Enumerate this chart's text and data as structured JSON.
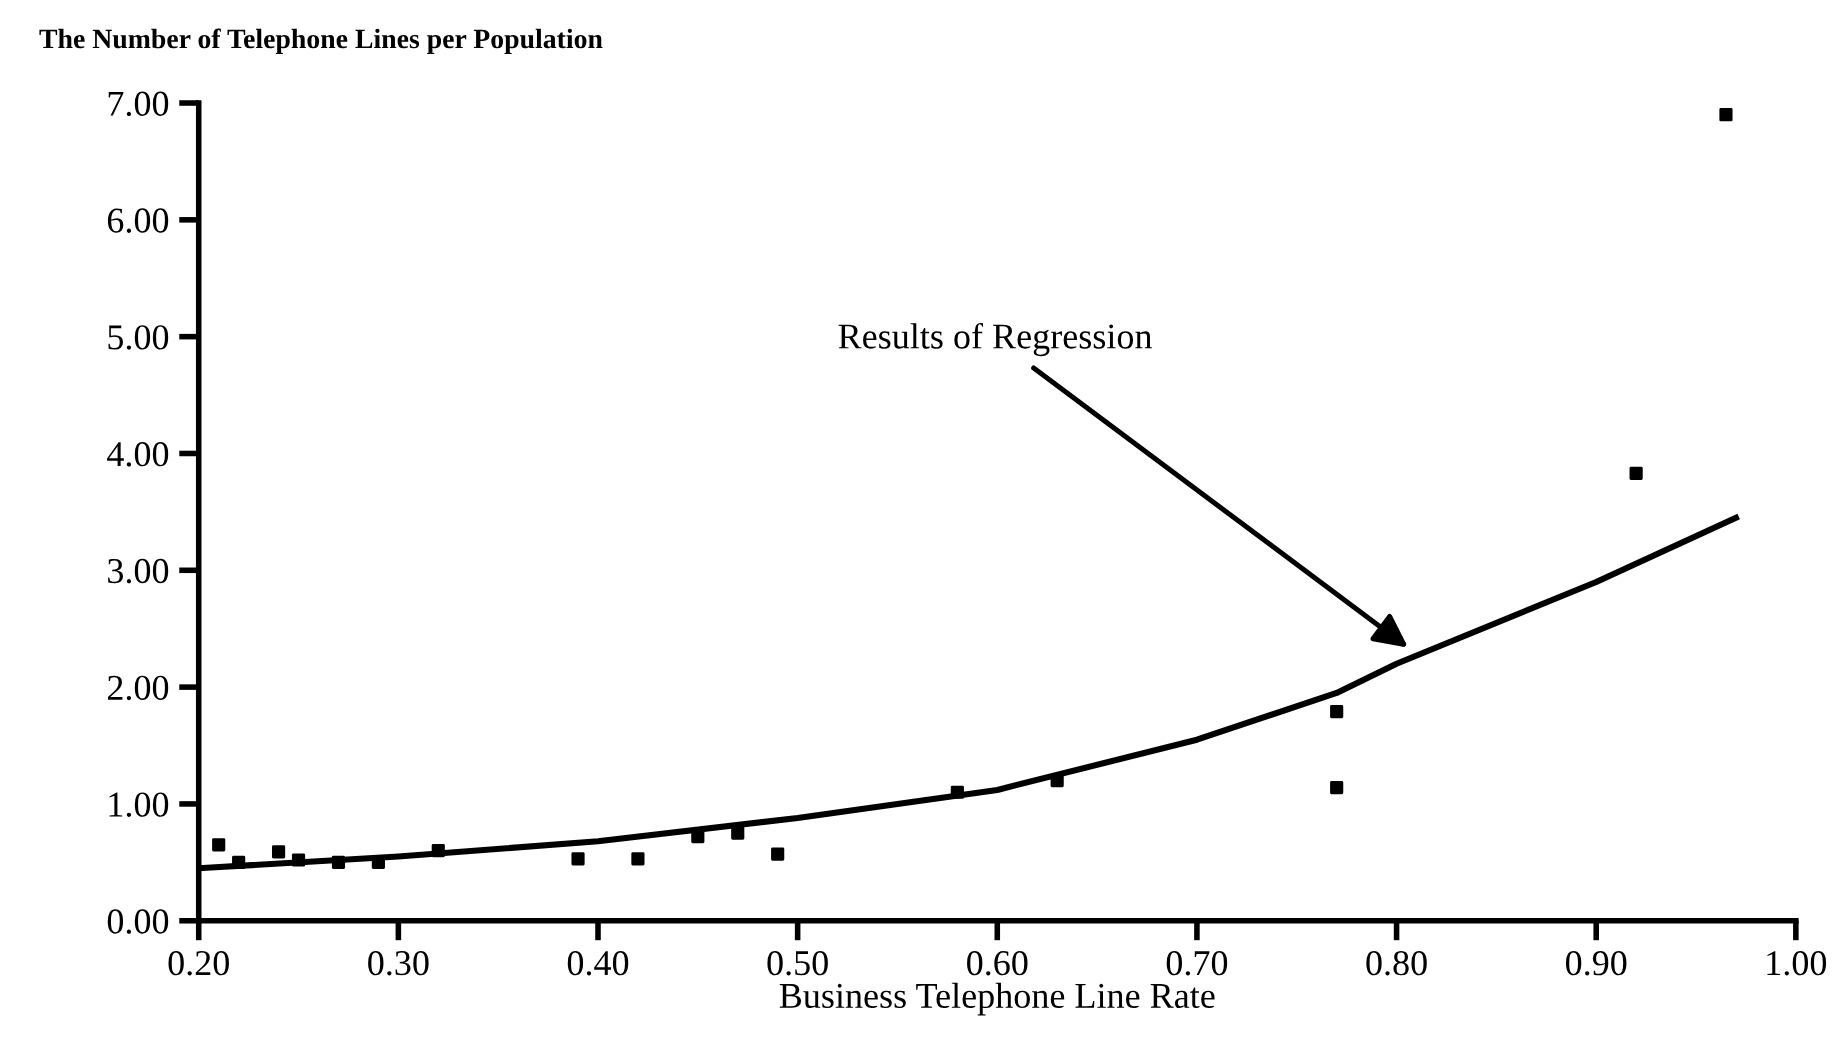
{
  "chart_data": {
    "type": "scatter",
    "xlabel": "Business Telephone Line Rate",
    "ylabel": "The Number of Telephone Lines per Population",
    "xlim": [
      0.2,
      1.0
    ],
    "ylim": [
      0,
      7
    ],
    "xticks": [
      {
        "value": 0.2,
        "label": "0.20"
      },
      {
        "value": 0.3,
        "label": "0.30"
      },
      {
        "value": 0.4,
        "label": "0.40"
      },
      {
        "value": 0.5,
        "label": "0.50"
      },
      {
        "value": 0.6,
        "label": "0.60"
      },
      {
        "value": 0.7,
        "label": "0.70"
      },
      {
        "value": 0.8,
        "label": "0.80"
      },
      {
        "value": 0.9,
        "label": "0.90"
      },
      {
        "value": 1.0,
        "label": "1.00"
      }
    ],
    "yticks": [
      {
        "value": 0,
        "label": "0.00"
      },
      {
        "value": 1,
        "label": "1.00"
      },
      {
        "value": 2,
        "label": "2.00"
      },
      {
        "value": 3,
        "label": "3.00"
      },
      {
        "value": 4,
        "label": "4.00"
      },
      {
        "value": 5,
        "label": "5.00"
      },
      {
        "value": 6,
        "label": "6.00"
      },
      {
        "value": 7,
        "label": "7.00"
      }
    ],
    "grid": false,
    "series": [
      {
        "marker": "square",
        "color": "#000000",
        "x": [
          0.21,
          0.22,
          0.24,
          0.25,
          0.27,
          0.29,
          0.32,
          0.39,
          0.42,
          0.45,
          0.47,
          0.49,
          0.58,
          0.63,
          0.77,
          0.77,
          0.92,
          0.965
        ],
        "values": [
          0.65,
          0.5,
          0.59,
          0.52,
          0.5,
          0.5,
          0.6,
          0.53,
          0.53,
          0.72,
          0.75,
          0.57,
          1.1,
          1.2,
          1.79,
          1.14,
          3.83,
          6.9
        ]
      },
      {
        "type": "line",
        "color": "#000000",
        "x": [
          0.2,
          0.3,
          0.4,
          0.5,
          0.6,
          0.7,
          0.77,
          0.8,
          0.9,
          0.97
        ],
        "values": [
          0.45,
          0.55,
          0.68,
          0.88,
          1.12,
          1.55,
          1.95,
          2.2,
          2.9,
          3.45
        ]
      }
    ],
    "annotations": [
      "Results of Regression"
    ]
  }
}
